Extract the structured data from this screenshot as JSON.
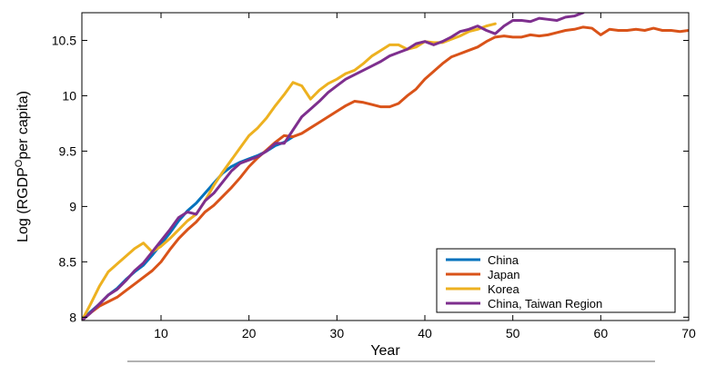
{
  "chart_data": {
    "type": "line",
    "xlabel": "Year",
    "ylabel": "Log (RGDP",
    "ylabel_super": "O",
    "ylabel_tail": "per capita)",
    "xlim": [
      1,
      70
    ],
    "ylim": [
      7.97,
      10.75
    ],
    "x_ticks": [
      10,
      20,
      30,
      40,
      50,
      60,
      70
    ],
    "y_ticks": [
      8,
      8.5,
      9,
      9.5,
      10,
      10.5
    ],
    "y_tick_labels": [
      "8",
      "8.5",
      "9",
      "9.5",
      "10",
      "10.5"
    ],
    "legend_position": "bottom-right",
    "series": [
      {
        "name": "China",
        "color": "#0072BD",
        "x": [
          1,
          2,
          3,
          4,
          5,
          6,
          7,
          8,
          9,
          10,
          11,
          12,
          13,
          14,
          15,
          16,
          17,
          18,
          19,
          20,
          21,
          22,
          23,
          24,
          25
        ],
        "y": [
          7.97,
          8.05,
          8.12,
          8.2,
          8.26,
          8.34,
          8.41,
          8.47,
          8.56,
          8.66,
          8.76,
          8.87,
          8.96,
          9.03,
          9.12,
          9.21,
          9.3,
          9.36,
          9.4,
          9.43,
          9.46,
          9.5,
          9.55,
          9.58,
          9.63
        ]
      },
      {
        "name": "Japan",
        "color": "#D95319",
        "x": [
          1,
          2,
          3,
          4,
          5,
          6,
          7,
          8,
          9,
          10,
          11,
          12,
          13,
          14,
          15,
          16,
          17,
          18,
          19,
          20,
          21,
          22,
          23,
          24,
          25,
          26,
          27,
          28,
          29,
          30,
          31,
          32,
          33,
          34,
          35,
          36,
          37,
          38,
          39,
          40,
          41,
          42,
          43,
          44,
          45,
          46,
          47,
          48,
          49,
          50,
          51,
          52,
          53,
          54,
          55,
          56,
          57,
          58,
          59,
          60,
          61,
          62,
          63,
          64,
          65,
          66,
          67,
          68,
          69,
          70
        ],
        "y": [
          7.97,
          8.04,
          8.1,
          8.14,
          8.18,
          8.24,
          8.3,
          8.36,
          8.42,
          8.5,
          8.61,
          8.71,
          8.79,
          8.86,
          8.95,
          9.01,
          9.09,
          9.17,
          9.26,
          9.36,
          9.44,
          9.51,
          9.58,
          9.64,
          9.63,
          9.66,
          9.71,
          9.76,
          9.81,
          9.86,
          9.91,
          9.95,
          9.94,
          9.92,
          9.9,
          9.9,
          9.93,
          10.0,
          10.06,
          10.15,
          10.22,
          10.29,
          10.35,
          10.38,
          10.41,
          10.44,
          10.49,
          10.53,
          10.54,
          10.53,
          10.53,
          10.55,
          10.54,
          10.55,
          10.57,
          10.59,
          10.6,
          10.62,
          10.61,
          10.55,
          10.6,
          10.59,
          10.59,
          10.6,
          10.59,
          10.61,
          10.59,
          10.59,
          10.58,
          10.59
        ]
      },
      {
        "name": "Korea",
        "color": "#EDB120",
        "x": [
          1,
          2,
          3,
          4,
          5,
          6,
          7,
          8,
          9,
          10,
          11,
          12,
          13,
          14,
          15,
          16,
          17,
          18,
          19,
          20,
          21,
          22,
          23,
          24,
          25,
          26,
          27,
          28,
          29,
          30,
          31,
          32,
          33,
          34,
          35,
          36,
          37,
          38,
          39,
          40,
          41,
          42,
          43,
          44,
          45,
          46,
          47,
          48
        ],
        "y": [
          7.97,
          8.12,
          8.28,
          8.41,
          8.48,
          8.55,
          8.62,
          8.67,
          8.59,
          8.64,
          8.71,
          8.79,
          8.87,
          8.93,
          9.05,
          9.19,
          9.31,
          9.42,
          9.53,
          9.64,
          9.71,
          9.8,
          9.91,
          10.01,
          10.12,
          10.09,
          9.97,
          10.05,
          10.11,
          10.15,
          10.2,
          10.23,
          10.29,
          10.36,
          10.41,
          10.46,
          10.46,
          10.42,
          10.44,
          10.49,
          10.48,
          10.48,
          10.51,
          10.54,
          10.58,
          10.6,
          10.63,
          10.65
        ]
      },
      {
        "name": "China, Taiwan Region",
        "color": "#7E2F8E",
        "x": [
          1,
          2,
          3,
          4,
          5,
          6,
          7,
          8,
          9,
          10,
          11,
          12,
          13,
          14,
          15,
          16,
          17,
          18,
          19,
          20,
          21,
          22,
          23,
          24,
          25,
          26,
          27,
          28,
          29,
          30,
          31,
          32,
          33,
          34,
          35,
          36,
          37,
          38,
          39,
          40,
          41,
          42,
          43,
          44,
          45,
          46,
          47,
          48,
          49,
          50,
          51,
          52,
          53,
          54,
          55,
          56,
          57,
          58
        ],
        "y": [
          7.97,
          8.04,
          8.12,
          8.2,
          8.25,
          8.33,
          8.42,
          8.49,
          8.59,
          8.69,
          8.79,
          8.9,
          8.95,
          8.93,
          9.05,
          9.12,
          9.22,
          9.32,
          9.39,
          9.42,
          9.45,
          9.5,
          9.57,
          9.57,
          9.69,
          9.81,
          9.88,
          9.95,
          10.03,
          10.09,
          10.15,
          10.19,
          10.23,
          10.27,
          10.31,
          10.36,
          10.39,
          10.42,
          10.47,
          10.49,
          10.46,
          10.49,
          10.53,
          10.58,
          10.6,
          10.63,
          10.59,
          10.56,
          10.63,
          10.68,
          10.68,
          10.67,
          10.7,
          10.69,
          10.68,
          10.71,
          10.72,
          10.75
        ]
      }
    ]
  }
}
